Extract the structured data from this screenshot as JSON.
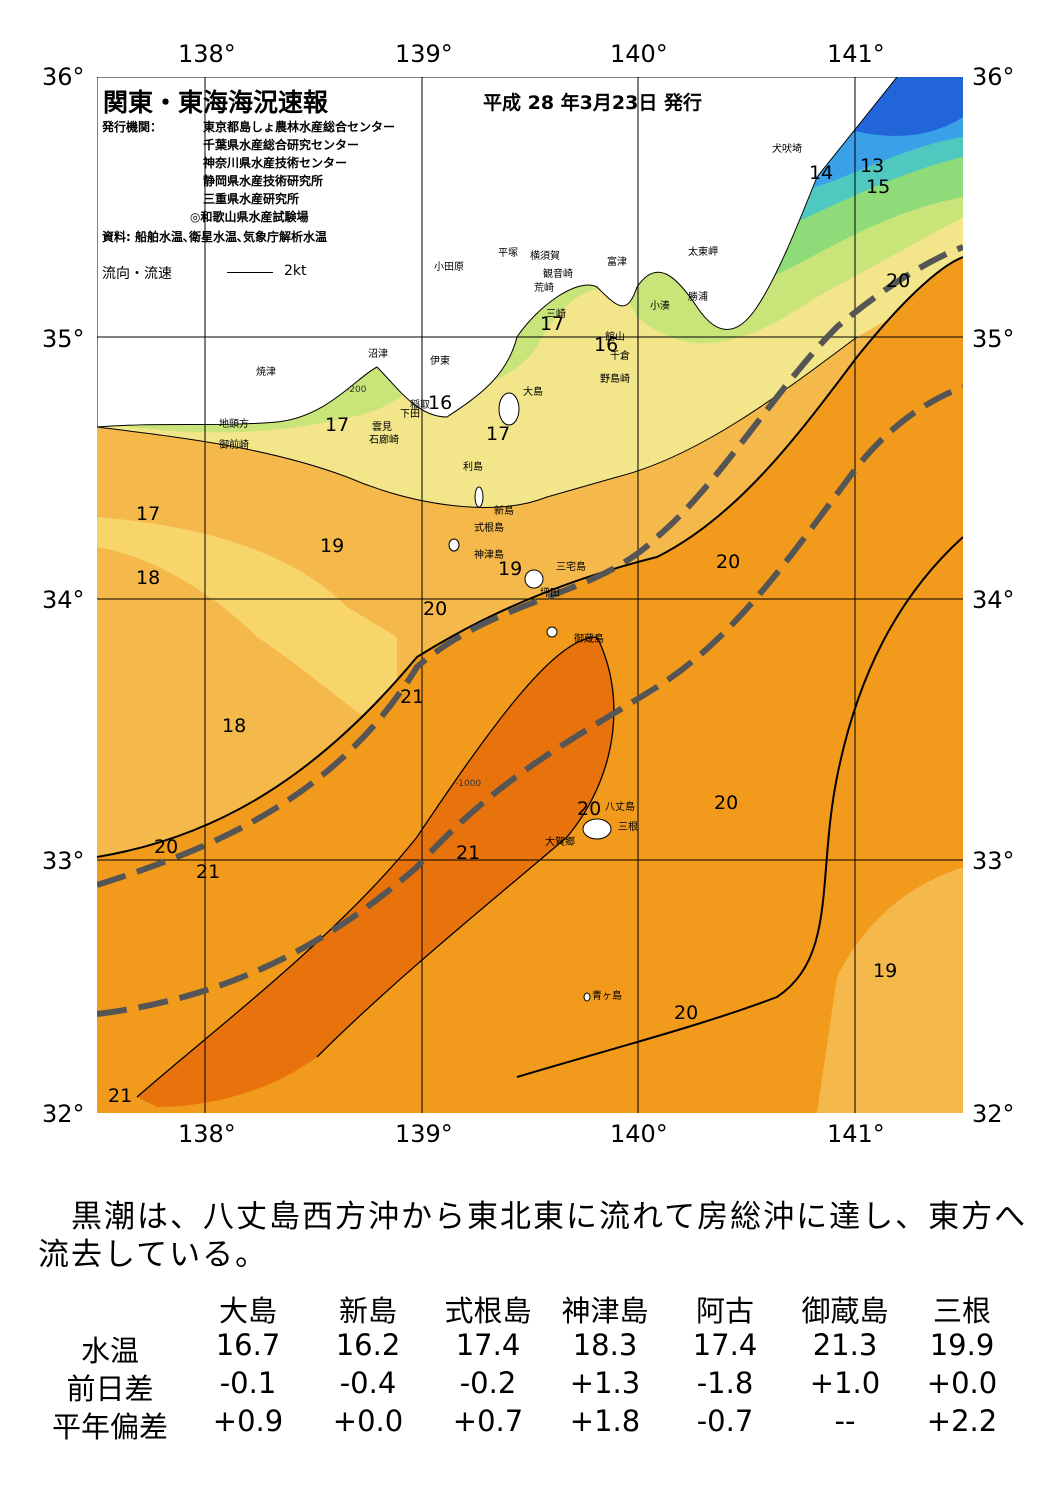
{
  "map": {
    "title": "関東・東海海況速報",
    "date": "平成 28 年3月23日 発行",
    "issuer_label": "発行機関：",
    "issuers": [
      "東京都島しょ農林水産総合センター",
      "千葉県水産総合研究センター",
      "神奈川県水産技術センター",
      "静岡県水産技術研究所",
      "三重県水産研究所",
      "◎和歌山県水産試験場"
    ],
    "source": "資料: 船舶水温､衛星水温､気象庁解析水温",
    "flow_legend": "流向・流速",
    "flow_unit": "2kt",
    "lat_labels": [
      "36°",
      "35°",
      "34°",
      "33°",
      "32°"
    ],
    "lon_labels": [
      "138°",
      "139°",
      "140°",
      "141°"
    ],
    "place_names": [
      "犬吠埼",
      "太東岬",
      "勝浦",
      "小湊",
      "富津",
      "横須賀",
      "観音崎",
      "平塚",
      "小田原",
      "荒崎",
      "三崎",
      "館山",
      "千倉",
      "野島崎",
      "沼津",
      "伊東",
      "稲取",
      "下田",
      "雲見",
      "石廊崎",
      "焼津",
      "地頭方",
      "御前崎",
      "大島",
      "利島",
      "新島",
      "式根島",
      "神津島",
      "三宅島",
      "坪田",
      "御蔵島",
      "八丈島",
      "三根",
      "大賀郷",
      "青ヶ島"
    ],
    "isotherm_labels": [
      "13",
      "14",
      "15",
      "16",
      "16",
      "17",
      "17",
      "17",
      "17",
      "18",
      "18",
      "19",
      "19",
      "20",
      "20",
      "20",
      "20",
      "20",
      "20",
      "20",
      "21",
      "21",
      "21",
      "21",
      "19"
    ],
    "depth_labels": [
      "-200",
      "-1000"
    ]
  },
  "colors": {
    "ocean_21": "#e8730c",
    "ocean_20": "#f29a1c",
    "ocean_19": "#f5b84a",
    "ocean_18": "#f7d56b",
    "ocean_17": "#f2e58a",
    "ocean_16": "#c9e57a",
    "ocean_15": "#8fdb7a",
    "ocean_14": "#4fc9c0",
    "ocean_13": "#3aa0e8",
    "ocean_12": "#2265d8",
    "land": "#ffffff",
    "kuroshio_axis": "#555555"
  },
  "text": {
    "summary": "　黒潮は、八丈島西方沖から東北東に流れて房総沖に達し、東方へ流去している。"
  },
  "table": {
    "headers": [
      "大島",
      "新島",
      "式根島",
      "神津島",
      "阿古",
      "御蔵島",
      "三根"
    ],
    "rows": [
      {
        "label": "水温",
        "values": [
          "16.7",
          "16.2",
          "17.4",
          "18.3",
          "17.4",
          "21.3",
          "19.9"
        ]
      },
      {
        "label": "前日差",
        "values": [
          "-0.1",
          "-0.4",
          "-0.2",
          "+1.3",
          "-1.8",
          "+1.0",
          "+0.0"
        ]
      },
      {
        "label": "平年偏差",
        "values": [
          "+0.9",
          "+0.0",
          "+0.7",
          "+1.8",
          "-0.7",
          "--",
          "+2.2"
        ]
      }
    ]
  }
}
